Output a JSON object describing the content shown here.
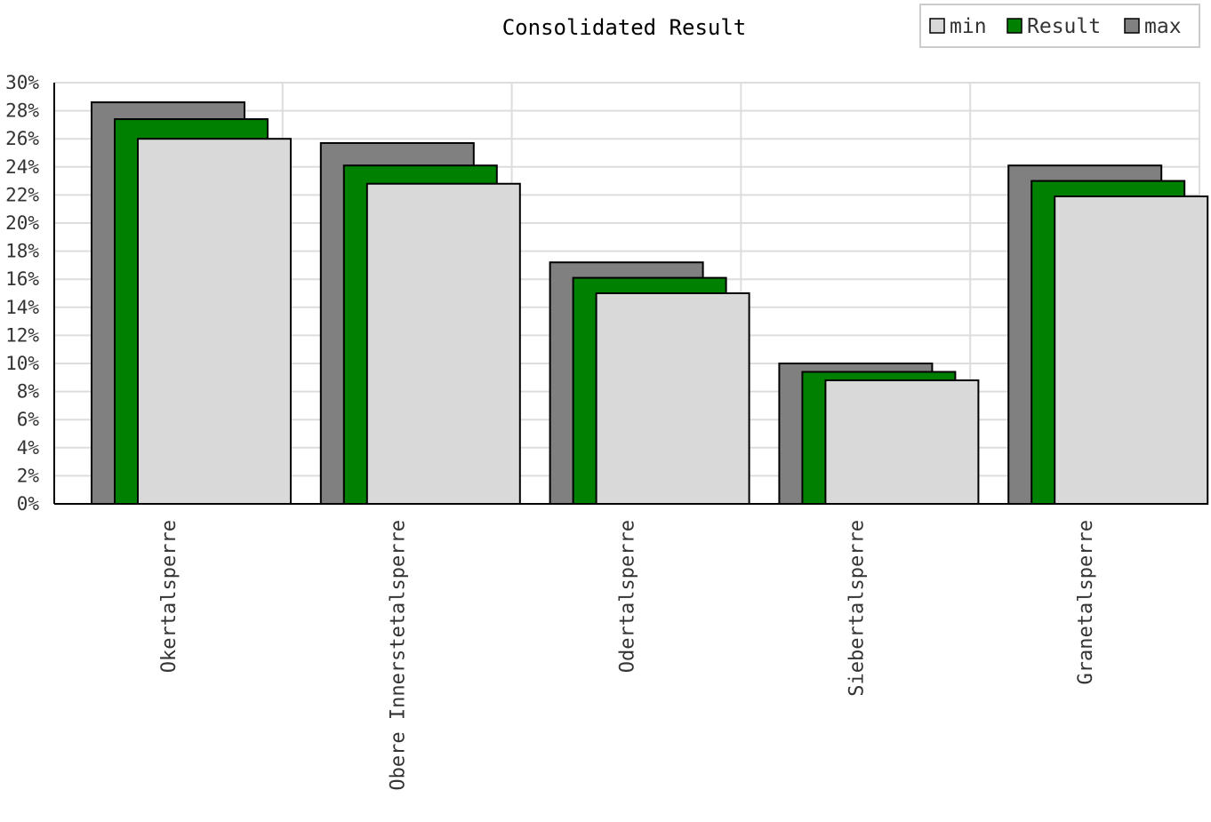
{
  "chart_data": {
    "type": "bar",
    "title": "Consolidated Result",
    "xlabel": "",
    "ylabel": "",
    "ylim": [
      0,
      30
    ],
    "y_ticks": [
      "0%",
      "2%",
      "4%",
      "6%",
      "8%",
      "10%",
      "12%",
      "14%",
      "16%",
      "18%",
      "20%",
      "22%",
      "24%",
      "26%",
      "28%",
      "30%"
    ],
    "categories": [
      "Okertalsperre",
      "Obere Innerstetalsperre",
      "Odertalsperre",
      "Siebertalsperre",
      "Granetalsperre"
    ],
    "series": [
      {
        "name": "max",
        "color": "#808080",
        "values": [
          28.6,
          25.7,
          17.2,
          10.0,
          24.1
        ]
      },
      {
        "name": "Result",
        "color": "#008000",
        "values": [
          27.4,
          24.1,
          16.1,
          9.4,
          23.0
        ]
      },
      {
        "name": "min",
        "color": "#d9d9d9",
        "values": [
          26.0,
          22.8,
          15.0,
          8.8,
          21.9
        ]
      }
    ],
    "legend": {
      "position": "top-right",
      "items": [
        {
          "name": "min",
          "color": "#d9d9d9"
        },
        {
          "name": "Result",
          "color": "#008000"
        },
        {
          "name": "max",
          "color": "#808080"
        }
      ]
    },
    "grid": true
  }
}
